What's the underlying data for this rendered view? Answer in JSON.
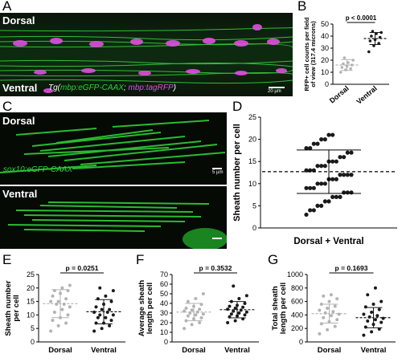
{
  "panels": {
    "A": {
      "letter": "A",
      "top_label": "Dorsal",
      "bottom_label": "Ventral",
      "caption_prefix": "Tg(",
      "caption_green": "mbp:eGFP-CAAX",
      "caption_sep": "; ",
      "caption_magenta": "mbp:tagRFP",
      "caption_suffix": ")",
      "scalebar": "20 µm"
    },
    "B": {
      "letter": "B"
    },
    "C": {
      "letter": "C",
      "top_label": "Dorsal",
      "bottom_label": "Ventral",
      "caption": "sox10:eGFP-CAAX",
      "scalebar": "5 µm"
    },
    "D": {
      "letter": "D"
    },
    "E": {
      "letter": "E"
    },
    "F": {
      "letter": "F"
    },
    "G": {
      "letter": "G"
    }
  },
  "chart_data": [
    {
      "id": "B",
      "type": "scatter",
      "ylabel": "RFP+ cell counts per field of view (317.4 microns)",
      "ylim": [
        0,
        50
      ],
      "yticks": [
        0,
        10,
        20,
        30,
        40,
        50
      ],
      "categories": [
        "Dorsal",
        "Ventral"
      ],
      "pvalue": "p < 0.0001",
      "series": [
        {
          "name": "Dorsal",
          "mean": 16,
          "sd": 4.5,
          "values": [
            10,
            12,
            13,
            14,
            15,
            16,
            17,
            18,
            20,
            22
          ]
        },
        {
          "name": "Ventral",
          "mean": 38,
          "sd": 5,
          "values": [
            27,
            32,
            34,
            36,
            37,
            39,
            40,
            42,
            43,
            44
          ]
        }
      ],
      "colors": {
        "Dorsal": "#b3b3b3",
        "Ventral": "#1a1a1a"
      }
    },
    {
      "id": "D",
      "type": "scatter",
      "ylabel": "Sheath number per cell",
      "xlabel": "Dorsal + Ventral",
      "ylim": [
        0,
        25
      ],
      "yticks": [
        0,
        5,
        10,
        15,
        20,
        25
      ],
      "mean": 12.7,
      "sd_low": 7.8,
      "sd_high": 17.6,
      "values": [
        3,
        4,
        4,
        5,
        5,
        6,
        6,
        7,
        7,
        7,
        8,
        8,
        8,
        9,
        9,
        9,
        10,
        10,
        10,
        11,
        11,
        11,
        12,
        12,
        12,
        12,
        13,
        13,
        13,
        14,
        14,
        14,
        15,
        15,
        15,
        16,
        16,
        17,
        17,
        18,
        18,
        19,
        19,
        20,
        20,
        21,
        21
      ],
      "color": "#1a1a1a"
    },
    {
      "id": "E",
      "type": "scatter",
      "ylabel": "Sheath number per cell",
      "ylim": [
        0,
        25
      ],
      "yticks": [
        0,
        5,
        10,
        15,
        20,
        25
      ],
      "categories": [
        "Dorsal",
        "Ventral"
      ],
      "pvalue": "p = 0.0251",
      "series": [
        {
          "name": "Dorsal",
          "mean": 14.2,
          "sd": 5.2,
          "values": [
            4,
            6,
            7,
            8,
            9,
            10,
            11,
            12,
            13,
            14,
            14,
            15,
            15,
            16,
            17,
            18,
            19,
            19,
            20,
            21
          ]
        },
        {
          "name": "Ventral",
          "mean": 11.2,
          "sd": 4.5,
          "values": [
            4,
            5,
            6,
            7,
            7,
            8,
            9,
            9,
            10,
            10,
            11,
            11,
            12,
            12,
            13,
            14,
            15,
            16,
            17,
            19,
            20
          ]
        }
      ],
      "colors": {
        "Dorsal": "#b3b3b3",
        "Ventral": "#1a1a1a"
      }
    },
    {
      "id": "F",
      "type": "scatter",
      "ylabel": "Average sheath length per cell",
      "ylim": [
        0,
        70
      ],
      "yticks": [
        0,
        10,
        20,
        30,
        40,
        50,
        60,
        70
      ],
      "categories": [
        "Dorsal",
        "Ventral"
      ],
      "pvalue": "p = 0.3532",
      "series": [
        {
          "name": "Dorsal",
          "mean": 31,
          "sd": 9,
          "values": [
            14,
            18,
            20,
            22,
            24,
            25,
            27,
            28,
            29,
            30,
            31,
            32,
            33,
            34,
            35,
            37,
            39,
            42,
            45,
            50
          ]
        },
        {
          "name": "Ventral",
          "mean": 33.5,
          "sd": 8.5,
          "values": [
            20,
            22,
            24,
            26,
            27,
            28,
            29,
            30,
            31,
            32,
            33,
            34,
            35,
            36,
            37,
            38,
            40,
            42,
            45,
            48,
            58
          ]
        }
      ],
      "colors": {
        "Dorsal": "#b3b3b3",
        "Ventral": "#1a1a1a"
      }
    },
    {
      "id": "G",
      "type": "scatter",
      "ylabel": "Total sheath length per cell",
      "ylim": [
        0,
        1000
      ],
      "yticks": [
        0,
        200,
        400,
        600,
        800,
        1000
      ],
      "categories": [
        "Dorsal",
        "Ventral"
      ],
      "pvalue": "p = 0.1693",
      "series": [
        {
          "name": "Dorsal",
          "mean": 420,
          "sd": 140,
          "values": [
            120,
            180,
            230,
            270,
            300,
            330,
            360,
            390,
            410,
            430,
            450,
            470,
            500,
            530,
            560,
            600,
            640,
            680,
            700
          ]
        },
        {
          "name": "Ventral",
          "mean": 360,
          "sd": 150,
          "values": [
            100,
            150,
            190,
            220,
            260,
            290,
            310,
            330,
            350,
            370,
            390,
            410,
            440,
            480,
            520,
            560,
            600,
            700,
            800
          ]
        }
      ],
      "colors": {
        "Dorsal": "#b3b3b3",
        "Ventral": "#1a1a1a"
      }
    }
  ]
}
